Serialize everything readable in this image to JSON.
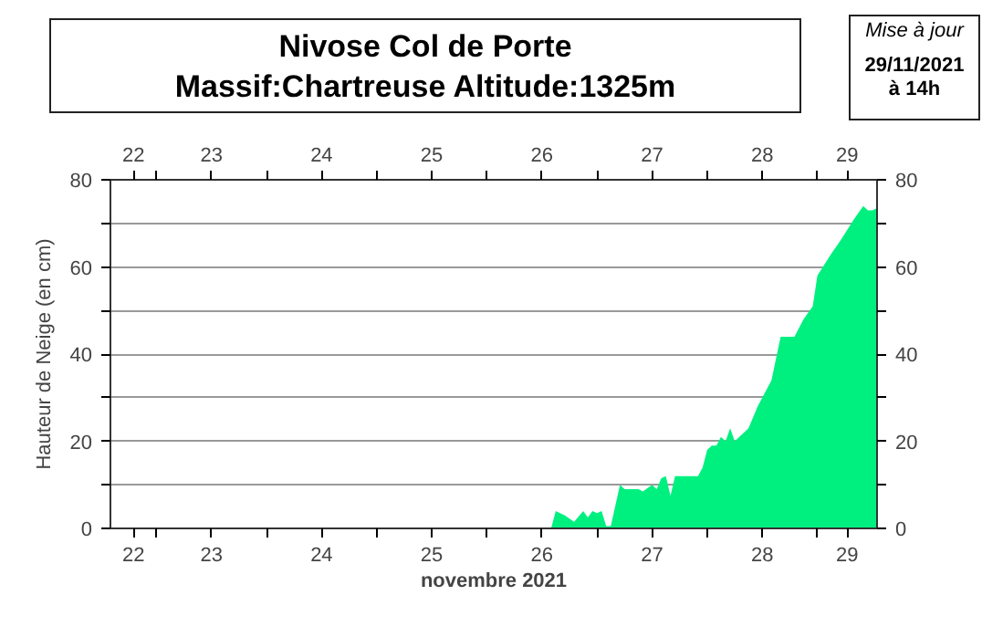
{
  "chart_data": {
    "type": "area",
    "title": "Nivose Col de Porte",
    "subtitle": "Massif:Chartreuse Altitude:1325m",
    "annotations": [
      "Mise à jour",
      "29/11/2021 à 14h"
    ],
    "xlabel": "novembre 2021",
    "ylabel": "Hauteur de Neige (en cm)",
    "x": [
      "2021-11-22T14:00",
      "2021-11-26T14:00",
      "2021-11-26T15:00",
      "2021-11-26T17:00",
      "2021-11-26T19:00",
      "2021-11-26T21:00",
      "2021-11-26T22:00",
      "2021-11-26T23:00",
      "2021-11-27T00:00",
      "2021-11-27T01:00",
      "2021-11-27T02:00",
      "2021-11-27T03:00",
      "2021-11-27T05:00",
      "2021-11-27T06:00",
      "2021-11-27T09:00",
      "2021-11-27T10:00",
      "2021-11-27T12:00",
      "2021-11-27T13:00",
      "2021-11-27T14:00",
      "2021-11-27T15:00",
      "2021-11-27T16:00",
      "2021-11-27T17:00",
      "2021-11-27T22:00",
      "2021-11-27T23:00",
      "2021-11-28T00:00",
      "2021-11-28T01:00",
      "2021-11-28T02:00",
      "2021-11-28T03:00",
      "2021-11-28T04:00",
      "2021-11-28T05:00",
      "2021-11-28T06:00",
      "2021-11-28T09:00",
      "2021-11-28T11:00",
      "2021-11-28T13:00",
      "2021-11-28T14:00",
      "2021-11-28T15:00",
      "2021-11-28T16:00",
      "2021-11-28T19:00",
      "2021-11-28T21:00",
      "2021-11-28T23:00",
      "2021-11-29T00:00",
      "2021-11-29T03:00",
      "2021-11-29T05:00",
      "2021-11-29T08:00",
      "2021-11-29T10:00",
      "2021-11-29T11:00",
      "2021-11-29T12:00",
      "2021-11-29T13:00"
    ],
    "series": [
      {
        "color": "#00f080",
        "values": [
          0,
          0,
          4,
          3,
          1.5,
          4,
          2.5,
          4,
          3.5,
          4,
          0.5,
          0.5,
          10,
          9,
          9,
          8.5,
          10,
          9,
          11.5,
          12,
          7.5,
          12,
          12,
          14,
          18,
          19,
          19,
          21,
          20,
          23,
          20,
          23,
          28,
          32,
          34,
          39,
          44,
          44,
          48,
          51,
          58,
          63,
          66,
          71,
          74,
          73,
          73,
          73.5
        ]
      }
    ],
    "xlim": [
      "2021-11-22T14:00",
      "2021-11-29T13:00"
    ],
    "xticks": [
      {
        "value": "2021-11-22T19:00",
        "label": "22"
      },
      {
        "value": "2021-11-23T00:00",
        "label": null
      },
      {
        "value": "2021-11-23T12:00",
        "label": "23"
      },
      {
        "value": "2021-11-24T00:00",
        "label": null
      },
      {
        "value": "2021-11-24T12:00",
        "label": "24"
      },
      {
        "value": "2021-11-25T00:00",
        "label": null
      },
      {
        "value": "2021-11-25T12:00",
        "label": "25"
      },
      {
        "value": "2021-11-26T00:00",
        "label": null
      },
      {
        "value": "2021-11-26T12:00",
        "label": "26"
      },
      {
        "value": "2021-11-27T00:00",
        "label": null
      },
      {
        "value": "2021-11-27T12:00",
        "label": "27"
      },
      {
        "value": "2021-11-28T00:00",
        "label": null
      },
      {
        "value": "2021-11-28T12:00",
        "label": "28"
      },
      {
        "value": "2021-11-29T00:00",
        "label": null
      },
      {
        "value": "2021-11-29T06:30",
        "label": "29"
      }
    ],
    "x2lim": [
      "2021-11-22T14:00",
      "2021-11-29T13:00"
    ],
    "x2ticks": [
      {
        "value": "2021-11-22T19:00",
        "label": "22"
      },
      {
        "value": "2021-11-23T00:00",
        "label": null
      },
      {
        "value": "2021-11-23T12:00",
        "label": "23"
      },
      {
        "value": "2021-11-24T00:00",
        "label": null
      },
      {
        "value": "2021-11-24T12:00",
        "label": "24"
      },
      {
        "value": "2021-11-25T00:00",
        "label": null
      },
      {
        "value": "2021-11-25T12:00",
        "label": "25"
      },
      {
        "value": "2021-11-26T00:00",
        "label": null
      },
      {
        "value": "2021-11-26T12:00",
        "label": "26"
      },
      {
        "value": "2021-11-27T00:00",
        "label": null
      },
      {
        "value": "2021-11-27T12:00",
        "label": "27"
      },
      {
        "value": "2021-11-28T00:00",
        "label": null
      },
      {
        "value": "2021-11-28T12:00",
        "label": "28"
      },
      {
        "value": "2021-11-29T00:00",
        "label": null
      },
      {
        "value": "2021-11-29T06:30",
        "label": "29"
      }
    ],
    "ylim": [
      0,
      80
    ],
    "yticks": [
      0,
      {
        "value": 10,
        "label": null
      },
      20,
      {
        "value": 30,
        "label": null
      },
      40,
      {
        "value": 50,
        "label": null
      },
      60,
      {
        "value": 70,
        "label": null
      },
      80
    ],
    "y2lim": [
      0,
      80
    ],
    "y2ticks": [
      0,
      {
        "value": 10,
        "label": null
      },
      20,
      {
        "value": 30,
        "label": null
      },
      40,
      {
        "value": 50,
        "label": null
      },
      60,
      {
        "value": 70,
        "label": null
      },
      80
    ],
    "grid": "y"
  }
}
